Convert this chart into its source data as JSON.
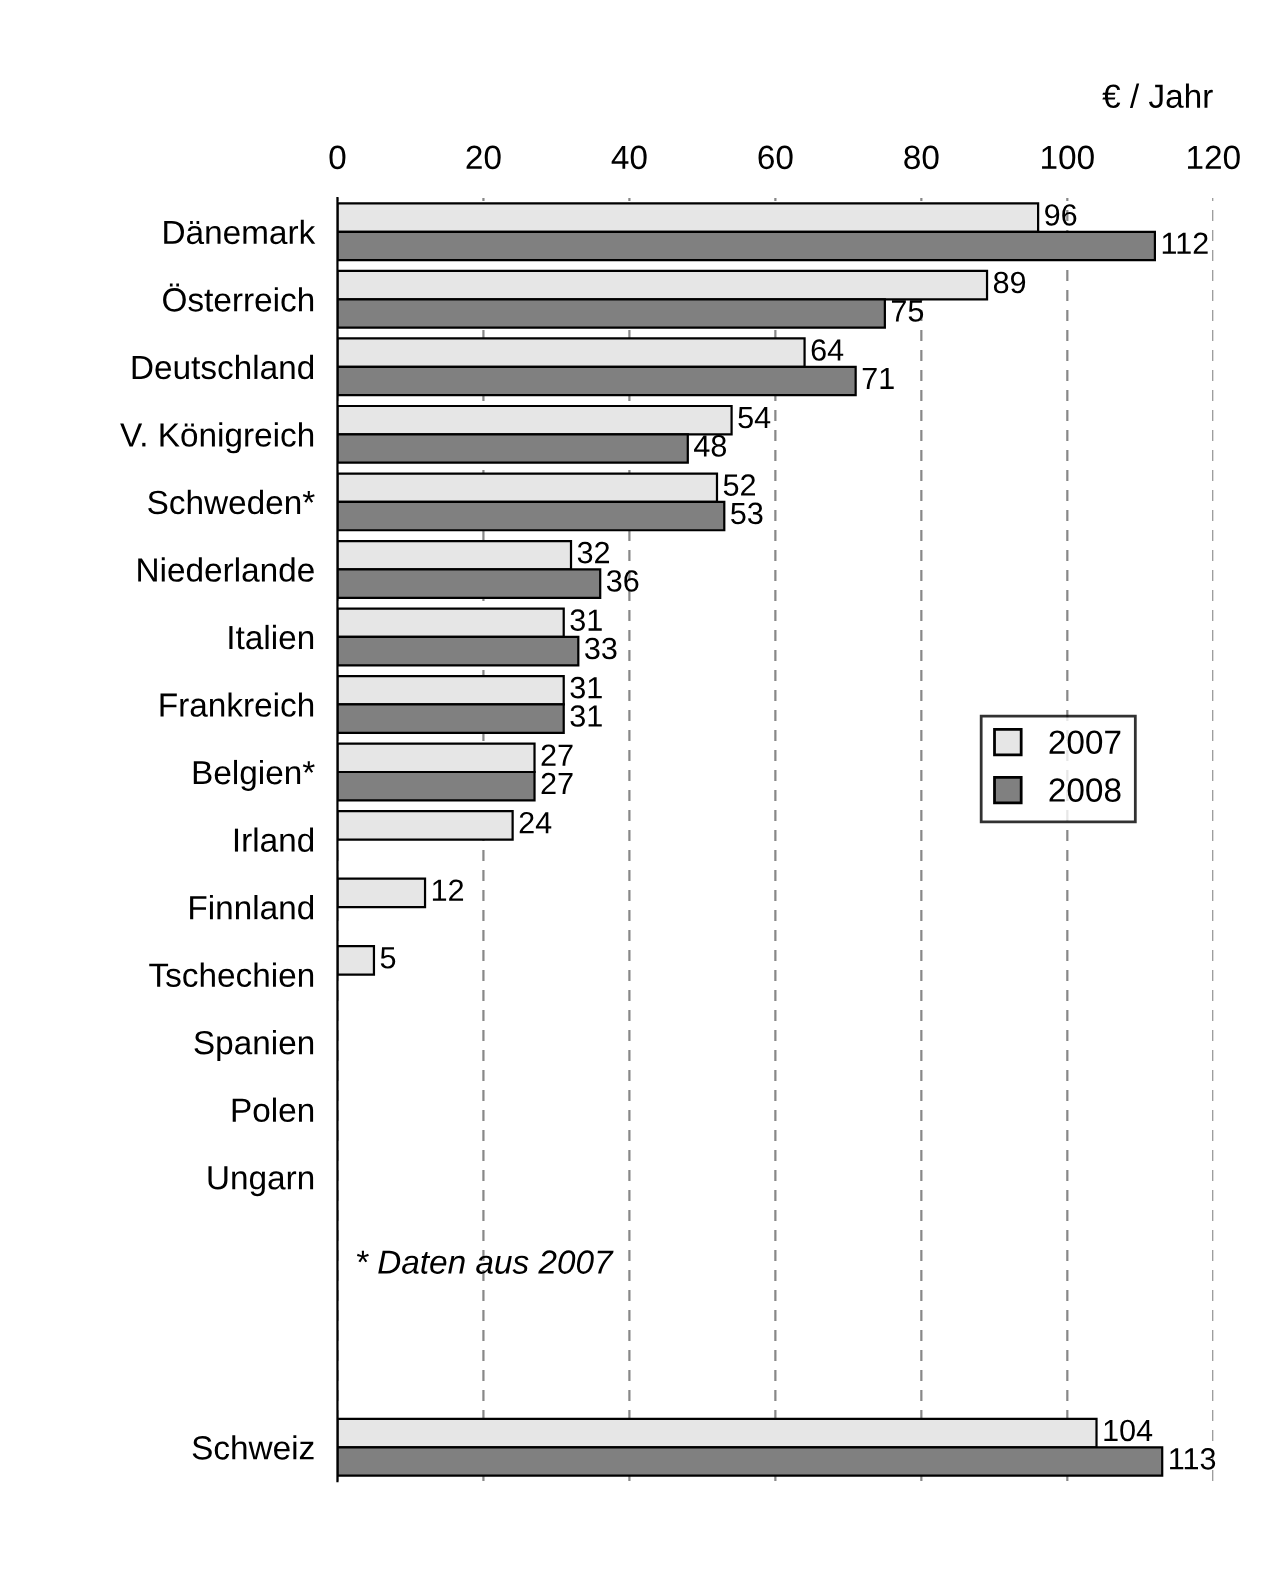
{
  "chart_data": {
    "type": "bar",
    "orientation": "horizontal",
    "xlabel": "€ / Jahr",
    "categories": [
      "Dänemark",
      "Österreich",
      "Deutschland",
      "V. Königreich",
      "Schweden*",
      "Niederlande",
      "Italien",
      "Frankreich",
      "Belgien*",
      "Irland",
      "Finnland",
      "Tschechien",
      "Spanien",
      "Polen",
      "Ungarn",
      null,
      null,
      null,
      "Schweiz"
    ],
    "series": [
      {
        "name": "2007",
        "color": "#e6e6e6",
        "values": [
          96,
          89,
          64,
          54,
          52,
          32,
          31,
          31,
          27,
          24,
          12,
          5,
          null,
          null,
          null,
          null,
          null,
          null,
          104
        ]
      },
      {
        "name": "2008",
        "color": "#808080",
        "values": [
          112,
          75,
          71,
          48,
          53,
          36,
          33,
          31,
          27,
          null,
          null,
          null,
          null,
          null,
          null,
          null,
          null,
          null,
          113
        ]
      }
    ],
    "xlim": [
      0,
      120
    ],
    "xticks": [
      0,
      20,
      40,
      60,
      80,
      100,
      120
    ],
    "grid": "x",
    "legend": "right",
    "data_labels": true,
    "annotations": [
      "* Daten aus 2007"
    ]
  }
}
